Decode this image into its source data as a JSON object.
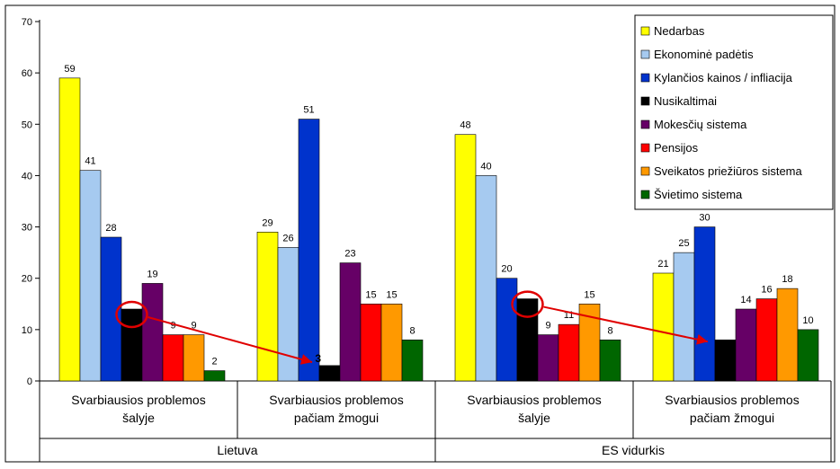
{
  "chart_data": {
    "type": "bar",
    "ylim": [
      0,
      70
    ],
    "yticks": [
      0,
      10,
      20,
      30,
      40,
      50,
      60,
      70
    ],
    "grid": false,
    "legend_position": "top-right",
    "groups": [
      {
        "label": "Lietuva",
        "subgroups": [
          {
            "label_lines": [
              "Svarbiausios problemos",
              "šalyje"
            ]
          },
          {
            "label_lines": [
              "Svarbiausios problemos",
              "pačiam žmogui"
            ]
          }
        ]
      },
      {
        "label": "ES vidurkis",
        "subgroups": [
          {
            "label_lines": [
              "Svarbiausios problemos",
              "šalyje"
            ]
          },
          {
            "label_lines": [
              "Svarbiausios problemos",
              "pačiam žmogui"
            ]
          }
        ]
      }
    ],
    "series": [
      {
        "name": "Nedarbas",
        "color": "#ffff00",
        "values": [
          59,
          29,
          48,
          21
        ]
      },
      {
        "name": "Ekonominė padėtis",
        "color": "#a6caf0",
        "values": [
          41,
          26,
          40,
          25
        ]
      },
      {
        "name": "Kylančios kainos / infliacija",
        "color": "#0033cc",
        "values": [
          28,
          51,
          20,
          30
        ]
      },
      {
        "name": "Nusikaltimai",
        "color": "#000000",
        "values": [
          14,
          3,
          16,
          8
        ]
      },
      {
        "name": "Mokesčių sistema",
        "color": "#660066",
        "values": [
          19,
          23,
          9,
          14
        ]
      },
      {
        "name": "Pensijos",
        "color": "#ff0000",
        "values": [
          9,
          15,
          11,
          16
        ]
      },
      {
        "name": "Sveikatos priežiūros sistema",
        "color": "#ff9900",
        "values": [
          9,
          15,
          15,
          18
        ]
      },
      {
        "name": "Švietimo sistema",
        "color": "#006600",
        "values": [
          2,
          8,
          8,
          10
        ]
      }
    ],
    "highlights": [
      {
        "series": "Nusikaltimai",
        "from_cluster": 0,
        "to_cluster": 1,
        "circle_cluster": 0,
        "color": "#e00000"
      },
      {
        "series": "Nusikaltimai",
        "from_cluster": 2,
        "to_cluster": 3,
        "circle_cluster": 2,
        "color": "#e00000"
      }
    ]
  }
}
